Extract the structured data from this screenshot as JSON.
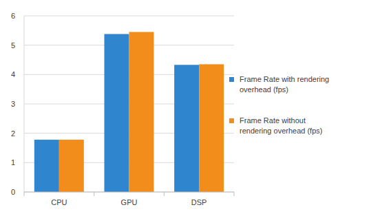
{
  "chart_data": {
    "type": "bar",
    "categories": [
      "CPU",
      "GPU",
      "DSP"
    ],
    "series": [
      {
        "name": "Frame Rate with rendering overhead (fps)",
        "color": "#2f86cf",
        "values": [
          1.78,
          5.38,
          4.33
        ]
      },
      {
        "name": "Frame Rate without rendering overhead (fps)",
        "color": "#f28c1a",
        "values": [
          1.78,
          5.45,
          4.35
        ]
      }
    ],
    "ylim": [
      0,
      6
    ],
    "yticks": [
      0,
      1,
      2,
      3,
      4,
      5,
      6
    ],
    "grid": true,
    "legend": "right"
  }
}
